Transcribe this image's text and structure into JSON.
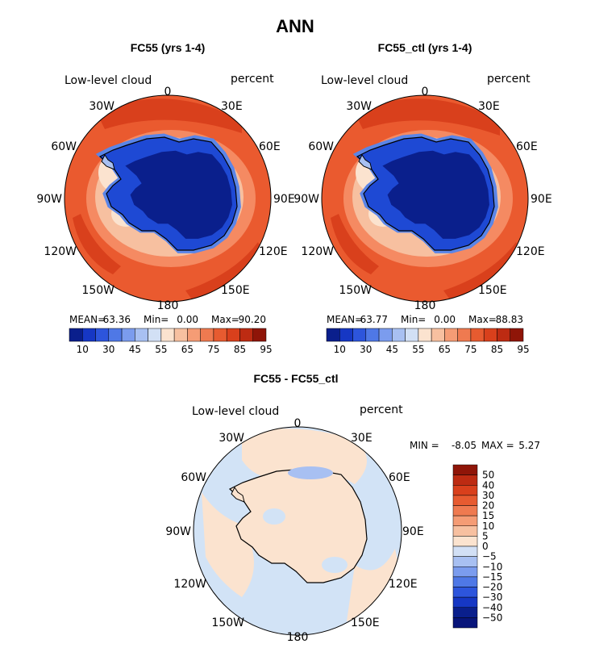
{
  "title": "ANN",
  "panels": [
    {
      "title": "FC55 (yrs 1-4)",
      "variable": "Low-level cloud",
      "units": "percent",
      "stats": {
        "mean_label": "MEAN=",
        "mean": "63.36",
        "min_label": "Min=",
        "min": "0.00",
        "max_label": "Max=",
        "max": "90.20"
      }
    },
    {
      "title": "FC55_ctl (yrs 1-4)",
      "variable": "Low-level cloud",
      "units": "percent",
      "stats": {
        "mean_label": "MEAN=",
        "mean": "63.77",
        "min_label": "Min=",
        "min": "0.00",
        "max_label": "Max=",
        "max": "88.83"
      }
    },
    {
      "title": "FC55 - FC55_ctl",
      "variable": "Low-level cloud",
      "units": "percent",
      "stats": {
        "min_label": "MIN =",
        "min": "-8.05",
        "max_label": "MAX =",
        "max": "5.27"
      }
    }
  ],
  "longitude_labels": {
    "top": "0",
    "right_top": "30E",
    "right_60": "60E",
    "right_90": "90E",
    "right_120": "120E",
    "right_150": "150E",
    "bottom": "180",
    "left_150": "150W",
    "left_120": "120W",
    "left_90": "90W",
    "left_60": "60W",
    "left_30": "30W"
  },
  "colorbar_field": {
    "labels": [
      "10",
      "30",
      "45",
      "55",
      "65",
      "75",
      "85",
      "95"
    ],
    "colors": [
      "#0a1f8c",
      "#1637c4",
      "#2d55dc",
      "#4f78e6",
      "#7b9cee",
      "#a8c0f2",
      "#d2e0f5",
      "#fbe3cf",
      "#f7c0a0",
      "#f59c75",
      "#ef7a50",
      "#e75b30",
      "#d9401c",
      "#bd2b12",
      "#8f1508"
    ]
  },
  "colorbar_diff": {
    "labels": [
      "50",
      "40",
      "30",
      "20",
      "15",
      "10",
      "5",
      "0",
      "−5",
      "−10",
      "−15",
      "−20",
      "−30",
      "−40",
      "−50"
    ],
    "colors": [
      "#8f1508",
      "#bd2b12",
      "#d9401c",
      "#e75b30",
      "#ef7a50",
      "#f59c75",
      "#f7c0a0",
      "#fbe3cf",
      "#d2e0f5",
      "#a8c0f2",
      "#7b9cee",
      "#4f78e6",
      "#2d55dc",
      "#1637c4",
      "#0a1f8c",
      "#08157a"
    ]
  },
  "colors": {
    "ocean_high": "#ea5a2f",
    "ocean_very_high": "#d9401c",
    "ocean_mid": "#f58a62",
    "land_low": "#0a1f8c",
    "land_edge": "#1e49d4",
    "ice_edge": "#5a85e8",
    "diff_positive": "#fbe3cf",
    "diff_negative": "#d2e3f6",
    "diff_stronger_negative": "#a8c0f2"
  }
}
